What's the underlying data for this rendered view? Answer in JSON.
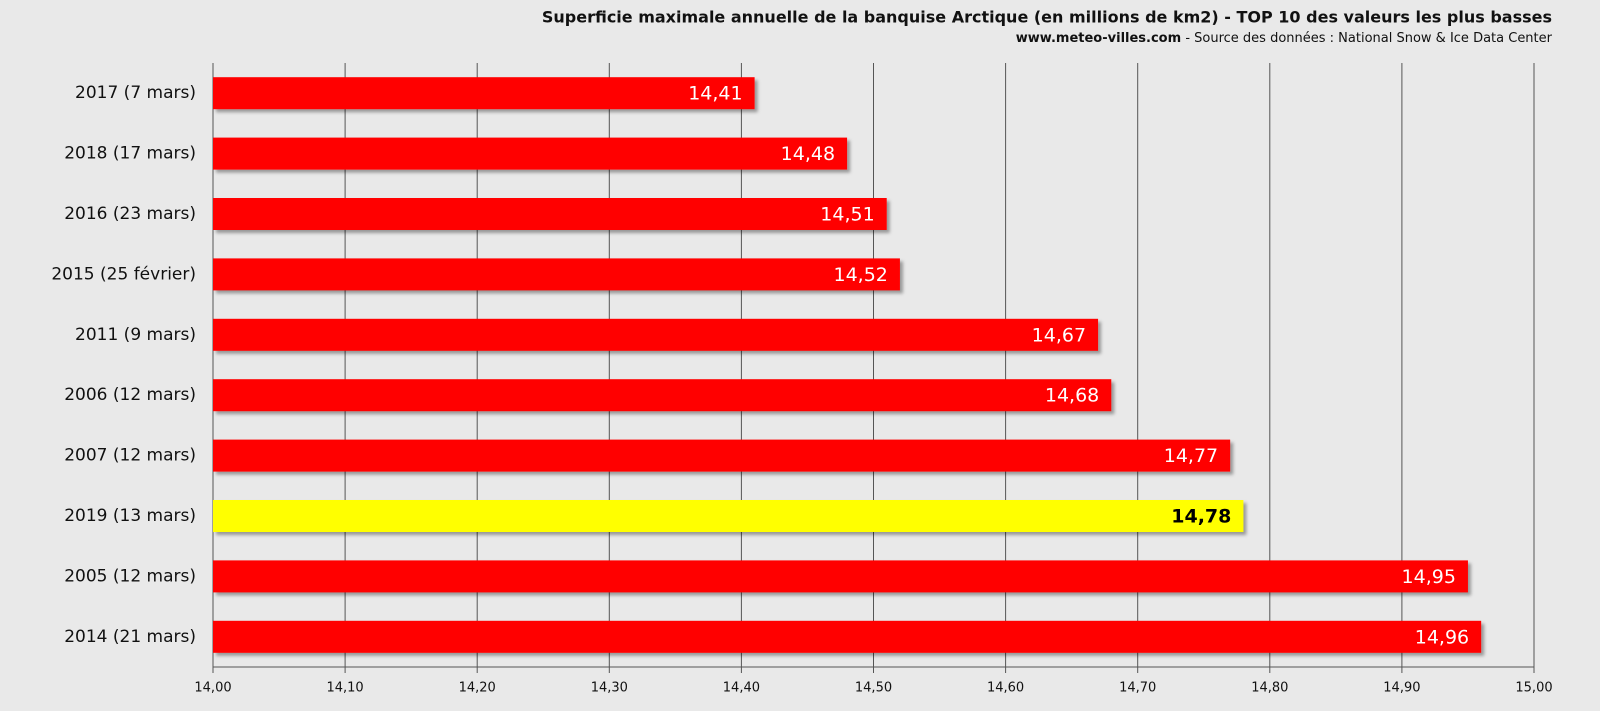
{
  "chart_data": {
    "type": "hbar",
    "title": "Superficie maximale annuelle de la banquise Arctique (en millions de km2) - TOP 10 des valeurs les plus basses",
    "subtitle": {
      "site": "www.meteo-villes.com",
      "source": "- Source des données : National Snow & Ice Data Center"
    },
    "categories": [
      "2017 (7 mars)",
      "2018 (17 mars)",
      "2016 (23 mars)",
      "2015 (25 février)",
      "2011 (9 mars)",
      "2006 (12 mars)",
      "2007 (12 mars)",
      "2019 (13 mars)",
      "2005 (12 mars)",
      "2014 (21 mars)"
    ],
    "values": [
      14.41,
      14.48,
      14.51,
      14.52,
      14.67,
      14.68,
      14.77,
      14.78,
      14.95,
      14.96
    ],
    "value_labels": [
      "14,41",
      "14,48",
      "14,51",
      "14,52",
      "14,67",
      "14,68",
      "14,77",
      "14,78",
      "14,95",
      "14,96"
    ],
    "color": "#ff0000",
    "highlight_index": 7,
    "highlight_color": "#ffff00",
    "xlim": [
      14,
      15
    ],
    "xticks": [
      {
        "value": 14,
        "label": "14,00"
      },
      {
        "value": 14.1,
        "label": "14,10"
      },
      {
        "value": 14.2,
        "label": "14,20"
      },
      {
        "value": 14.3,
        "label": "14,30"
      },
      {
        "value": 14.4,
        "label": "14,40"
      },
      {
        "value": 14.5,
        "label": "14,50"
      },
      {
        "value": 14.6,
        "label": "14,60"
      },
      {
        "value": 14.7,
        "label": "14,70"
      },
      {
        "value": 14.8,
        "label": "14,80"
      },
      {
        "value": 14.9,
        "label": "14,90"
      },
      {
        "value": 15,
        "label": "15,00"
      }
    ],
    "grid": true
  }
}
